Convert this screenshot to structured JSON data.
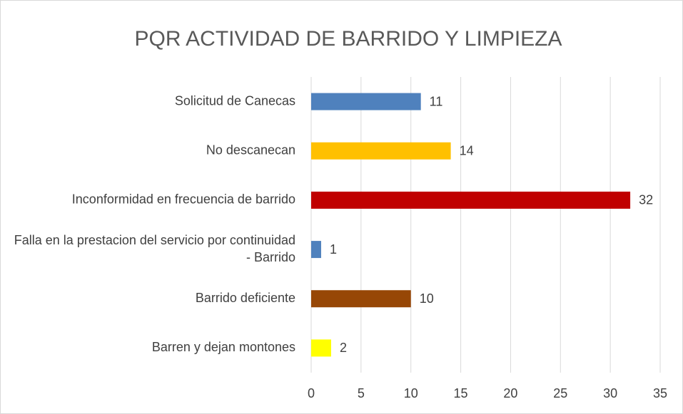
{
  "chart_data": {
    "type": "bar",
    "orientation": "horizontal",
    "title": "PQR ACTIVIDAD DE BARRIDO Y LIMPIEZA",
    "categories": [
      "Solicitud de Canecas",
      "No descanecan",
      "Inconformidad en frecuencia de barrido",
      "Falla en la prestacion del servicio por continuidad - Barrido",
      "Barrido deficiente",
      "Barren y dejan montones"
    ],
    "values": [
      11,
      14,
      32,
      1,
      10,
      2
    ],
    "colors": [
      "#4f81bd",
      "#ffc000",
      "#c00000",
      "#4f81bd",
      "#974706",
      "#ffff00"
    ],
    "xlim": [
      0,
      35
    ],
    "xticks": [
      0,
      5,
      10,
      15,
      20,
      25,
      30,
      35
    ],
    "grid": true
  }
}
